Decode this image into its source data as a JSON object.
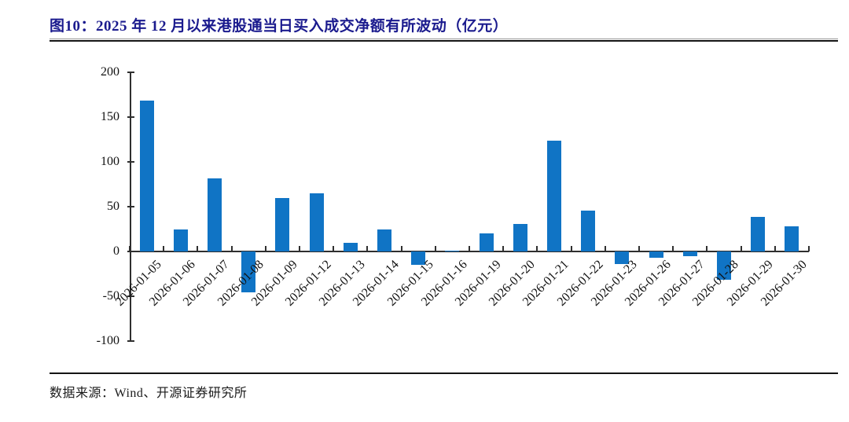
{
  "header": {
    "title": "图10：2025 年 12 月以来港股通当日买入成交净额有所波动（亿元）",
    "title_color": "#1b1b8e"
  },
  "footer": {
    "source": "数据来源：Wind、开源证券研究所"
  },
  "chart_data": {
    "type": "bar",
    "title": "2025年12月以来港股通当日买入成交净额有所波动（亿元）",
    "categories": [
      "2026-01-05",
      "2026-01-06",
      "2026-01-07",
      "2026-01-08",
      "2026-01-09",
      "2026-01-12",
      "2026-01-13",
      "2026-01-14",
      "2026-01-15",
      "2026-01-16",
      "2026-01-19",
      "2026-01-20",
      "2026-01-21",
      "2026-01-22",
      "2026-01-23",
      "2026-01-26",
      "2026-01-27",
      "2026-01-28",
      "2026-01-29",
      "2026-01-30"
    ],
    "values": [
      168,
      25,
      82,
      -46,
      60,
      65,
      10,
      25,
      -15,
      1,
      20,
      31,
      124,
      46,
      -14,
      -7,
      -5,
      -32,
      39,
      28
    ],
    "xlabel": "",
    "ylabel": "",
    "ylim": [
      -100,
      200
    ],
    "yticks": [
      200,
      150,
      100,
      50,
      0,
      -50,
      -100
    ],
    "bar_color": "#1074c5",
    "grid": false,
    "legend": "none"
  }
}
